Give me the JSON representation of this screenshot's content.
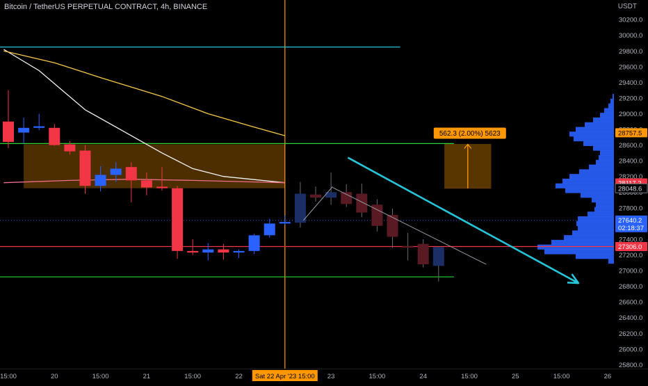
{
  "header": {
    "title": "Bitcoin / TetherUS PERPETUAL CONTRACT, 4h, BINANCE",
    "currency": "USDT"
  },
  "chart_data": {
    "type": "candlestick",
    "symbol": "Bitcoin / TetherUS PERPETUAL CONTRACT",
    "timeframe": "4h",
    "exchange": "BINANCE",
    "ylim": [
      25750,
      30450
    ],
    "y_ticks": [
      25800,
      26000,
      26200,
      26400,
      26600,
      26800,
      27000,
      27200,
      27400,
      27600,
      27800,
      28000,
      28200,
      28400,
      28600,
      28800,
      29000,
      29200,
      29400,
      29600,
      29800,
      30000,
      30200
    ],
    "x_ticks": [
      {
        "label": "15:00",
        "bar": 0
      },
      {
        "label": "20",
        "bar": 3
      },
      {
        "label": "15:00",
        "bar": 6
      },
      {
        "label": "21",
        "bar": 9
      },
      {
        "label": "15:00",
        "bar": 12
      },
      {
        "label": "22",
        "bar": 15
      },
      {
        "label": "23",
        "bar": 21
      },
      {
        "label": "15:00",
        "bar": 24
      },
      {
        "label": "24",
        "bar": 27
      },
      {
        "label": "15:00",
        "bar": 30
      },
      {
        "label": "25",
        "bar": 33
      },
      {
        "label": "15:00",
        "bar": 36
      },
      {
        "label": "26",
        "bar": 39
      }
    ],
    "crosshair": {
      "label": "Sat 22 Apr '23   15:00",
      "bar": 18
    },
    "candles": [
      {
        "o": 28900,
        "h": 29300,
        "l": 28560,
        "c": 28640
      },
      {
        "o": 28760,
        "h": 28950,
        "l": 28620,
        "c": 28820
      },
      {
        "o": 28820,
        "h": 29000,
        "l": 28790,
        "c": 28840
      },
      {
        "o": 28820,
        "h": 28870,
        "l": 28590,
        "c": 28600
      },
      {
        "o": 28610,
        "h": 28650,
        "l": 28480,
        "c": 28520
      },
      {
        "o": 28530,
        "h": 28600,
        "l": 27980,
        "c": 28080
      },
      {
        "o": 28080,
        "h": 28330,
        "l": 28010,
        "c": 28220
      },
      {
        "o": 28220,
        "h": 28380,
        "l": 28130,
        "c": 28300
      },
      {
        "o": 28320,
        "h": 28380,
        "l": 27870,
        "c": 28150
      },
      {
        "o": 28150,
        "h": 28250,
        "l": 27960,
        "c": 28060
      },
      {
        "o": 28070,
        "h": 28320,
        "l": 28020,
        "c": 28050
      },
      {
        "o": 28050,
        "h": 28080,
        "l": 27150,
        "c": 27250
      },
      {
        "o": 27250,
        "h": 27400,
        "l": 27200,
        "c": 27230
      },
      {
        "o": 27230,
        "h": 27350,
        "l": 27130,
        "c": 27270
      },
      {
        "o": 27270,
        "h": 27340,
        "l": 27140,
        "c": 27230
      },
      {
        "o": 27230,
        "h": 27270,
        "l": 27160,
        "c": 27250
      },
      {
        "o": 27250,
        "h": 27470,
        "l": 27210,
        "c": 27450
      },
      {
        "o": 27450,
        "h": 27660,
        "l": 27420,
        "c": 27600
      },
      {
        "o": 27600,
        "h": 27700,
        "l": 27580,
        "c": 27620
      }
    ],
    "projected_candles": [
      {
        "o": 27610,
        "h": 28130,
        "l": 27550,
        "c": 27980
      },
      {
        "o": 27970,
        "h": 28070,
        "l": 27880,
        "c": 27930
      },
      {
        "o": 27930,
        "h": 28250,
        "l": 27840,
        "c": 28000
      },
      {
        "o": 28000,
        "h": 28100,
        "l": 27810,
        "c": 27850
      },
      {
        "o": 27980,
        "h": 28110,
        "l": 27680,
        "c": 27740
      },
      {
        "o": 27840,
        "h": 27910,
        "l": 27500,
        "c": 27570
      },
      {
        "o": 27710,
        "h": 27790,
        "l": 27290,
        "c": 27430
      },
      {
        "o": 27310,
        "h": 27480,
        "l": 27130,
        "c": 27300
      },
      {
        "o": 27340,
        "h": 27400,
        "l": 27040,
        "c": 27080
      },
      {
        "o": 27060,
        "h": 27310,
        "l": 26860,
        "c": 27300
      }
    ],
    "lines": {
      "ma_white": [
        [
          -0.3,
          29820
        ],
        [
          2,
          29550
        ],
        [
          5,
          29050
        ],
        [
          8,
          28720
        ],
        [
          10,
          28500
        ],
        [
          12,
          28300
        ],
        [
          14,
          28200
        ],
        [
          16,
          28160
        ],
        [
          18,
          28120
        ]
      ],
      "ma_yellow": [
        [
          -0.3,
          29800
        ],
        [
          3,
          29650
        ],
        [
          6,
          29460
        ],
        [
          10,
          29220
        ],
        [
          13,
          29000
        ],
        [
          16,
          28830
        ],
        [
          18,
          28720
        ]
      ],
      "ma_pink": [
        [
          -0.3,
          28120
        ],
        [
          4,
          28150
        ],
        [
          8,
          28165
        ],
        [
          12,
          28150
        ],
        [
          16,
          28130
        ],
        [
          18,
          28120
        ]
      ]
    },
    "hlines": [
      {
        "price": 29850,
        "color": "#26c6da",
        "bar_end": 25.5
      },
      {
        "price": 28620,
        "color": "#2bd233",
        "bar_end": 29
      },
      {
        "price": 27306,
        "color": "#f23645",
        "bar_end": 40
      },
      {
        "price": 26920,
        "color": "#2bd233",
        "bar_end": 29
      },
      {
        "price": 27640.2,
        "color": "#2962ff",
        "dotted": true,
        "bar_end": 40
      }
    ],
    "zone": {
      "top": 28610,
      "bottom": 28050,
      "color": "#ff9800"
    },
    "measure": {
      "label": "562.3 (2.00%) 5623",
      "top": 28610,
      "bottom": 28048.6
    },
    "trend_arrow": {
      "from": [
        22.1,
        28440
      ],
      "to": [
        37.1,
        26840
      ],
      "color": "#26c6da"
    },
    "trendline_thin": [
      [
        21.1,
        28060
      ],
      [
        31.1,
        27080
      ]
    ],
    "trendline_gray": [
      [
        19.2,
        27640
      ],
      [
        21.1,
        28070
      ]
    ],
    "price_labels": [
      {
        "text": "28757.5",
        "price": 28757.5,
        "bg": "#ff9800",
        "fg": "#000000"
      },
      {
        "text": "28117.2",
        "price": 28117.2,
        "bg": "#f23645",
        "fg": "#ffffff"
      },
      {
        "text": "28048.6",
        "price": 28048.6,
        "bg": "#000000",
        "fg": "#d1d4dc",
        "border": "#787b86"
      },
      {
        "text": "27640.2",
        "price": 27640.2,
        "bg": "#2962ff",
        "fg": "#ffffff",
        "sub": "02:18:37"
      },
      {
        "text": "27306.0",
        "price": 27306,
        "bg": "#f23645",
        "fg": "#ffffff"
      }
    ],
    "volume_profile": {
      "color": "#2962ff",
      "bins": [
        [
          29220,
          2
        ],
        [
          29160,
          5
        ],
        [
          29100,
          8
        ],
        [
          29040,
          14
        ],
        [
          28980,
          20
        ],
        [
          28920,
          30
        ],
        [
          28860,
          42
        ],
        [
          28800,
          55
        ],
        [
          28740,
          64
        ],
        [
          28680,
          58
        ],
        [
          28620,
          44
        ],
        [
          28560,
          30
        ],
        [
          28500,
          20
        ],
        [
          28440,
          22
        ],
        [
          28380,
          26
        ],
        [
          28320,
          36
        ],
        [
          28260,
          50
        ],
        [
          28200,
          64
        ],
        [
          28140,
          74
        ],
        [
          28080,
          84
        ],
        [
          28020,
          70
        ],
        [
          27960,
          48
        ],
        [
          27900,
          32
        ],
        [
          27840,
          26
        ],
        [
          27780,
          28
        ],
        [
          27720,
          38
        ],
        [
          27660,
          52
        ],
        [
          27600,
          54
        ],
        [
          27540,
          52
        ],
        [
          27480,
          60
        ],
        [
          27420,
          72
        ],
        [
          27360,
          90
        ],
        [
          27300,
          110
        ],
        [
          27240,
          100
        ],
        [
          27180,
          55
        ],
        [
          27120,
          8
        ]
      ]
    }
  }
}
